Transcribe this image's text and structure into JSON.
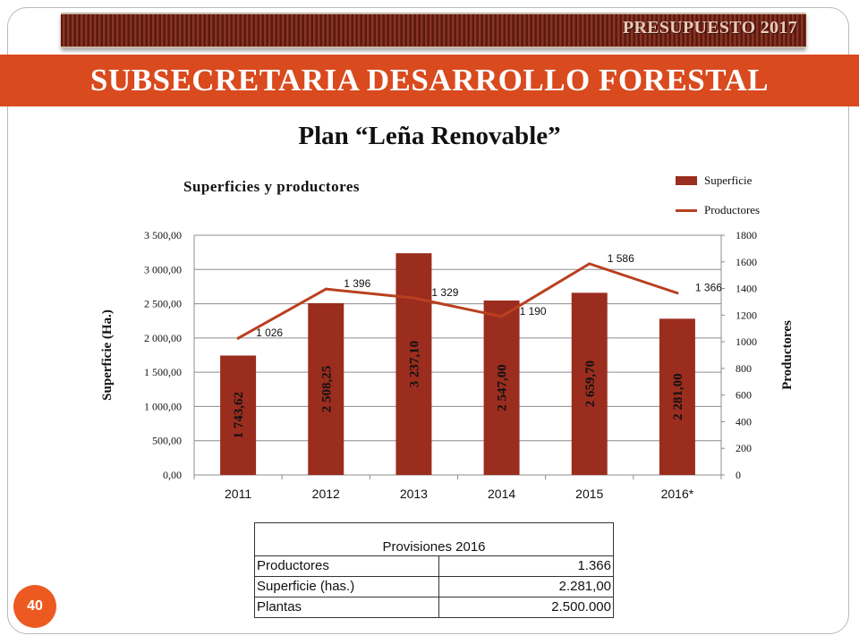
{
  "header": {
    "badge_text": "PRESUPUESTO 2017",
    "title": "SUBSECRETARIA DESARROLLO FORESTAL",
    "plan_title": "Plan “Leña Renovable”"
  },
  "page_number": "40",
  "colors": {
    "bar": "#9b2d1f",
    "line": "#b9401f",
    "title_bar": "#d94a1e",
    "badge": "#ec5a22"
  },
  "chart_data": {
    "type": "bar",
    "title": "Superficies  y productores",
    "categories": [
      "2011",
      "2012",
      "2013",
      "2014",
      "2015",
      "2016*"
    ],
    "series": [
      {
        "name": "Superficie",
        "type": "bar",
        "axis": "left",
        "values": [
          1743.62,
          2508.25,
          3237.1,
          2547.0,
          2659.7,
          2281.0
        ],
        "labels": [
          "1 743,62",
          "2 508,25",
          "3 237,10",
          "2 547,00",
          "2 659,70",
          "2 281,00"
        ]
      },
      {
        "name": "Productores",
        "type": "line",
        "axis": "right",
        "values": [
          1026,
          1396,
          1329,
          1190,
          1586,
          1366
        ],
        "labels": [
          "1 026",
          "1 396",
          "1 329",
          "1 190",
          "1 586",
          "1 366"
        ]
      }
    ],
    "ylabel": "Superficie (Ha.)",
    "ylabel_right": "Productores",
    "ylim": [
      0,
      3500
    ],
    "ylim_right": [
      0,
      1800
    ],
    "yticks": [
      "0,00",
      "500,00",
      "1 000,00",
      "1 500,00",
      "2 000,00",
      "2 500,00",
      "3 000,00",
      "3 500,00"
    ],
    "yticks_right": [
      "0",
      "200",
      "400",
      "600",
      "800",
      "1000",
      "1200",
      "1400",
      "1600",
      "1800"
    ],
    "grid": true,
    "legend": "top-right"
  },
  "provisions_table": {
    "caption": "Provisiones  2016",
    "rows": [
      {
        "label": "Productores",
        "value": "1.366"
      },
      {
        "label": "Superficie (has.)",
        "value": "2.281,00"
      },
      {
        "label": "Plantas",
        "value": "2.500.000"
      }
    ]
  }
}
